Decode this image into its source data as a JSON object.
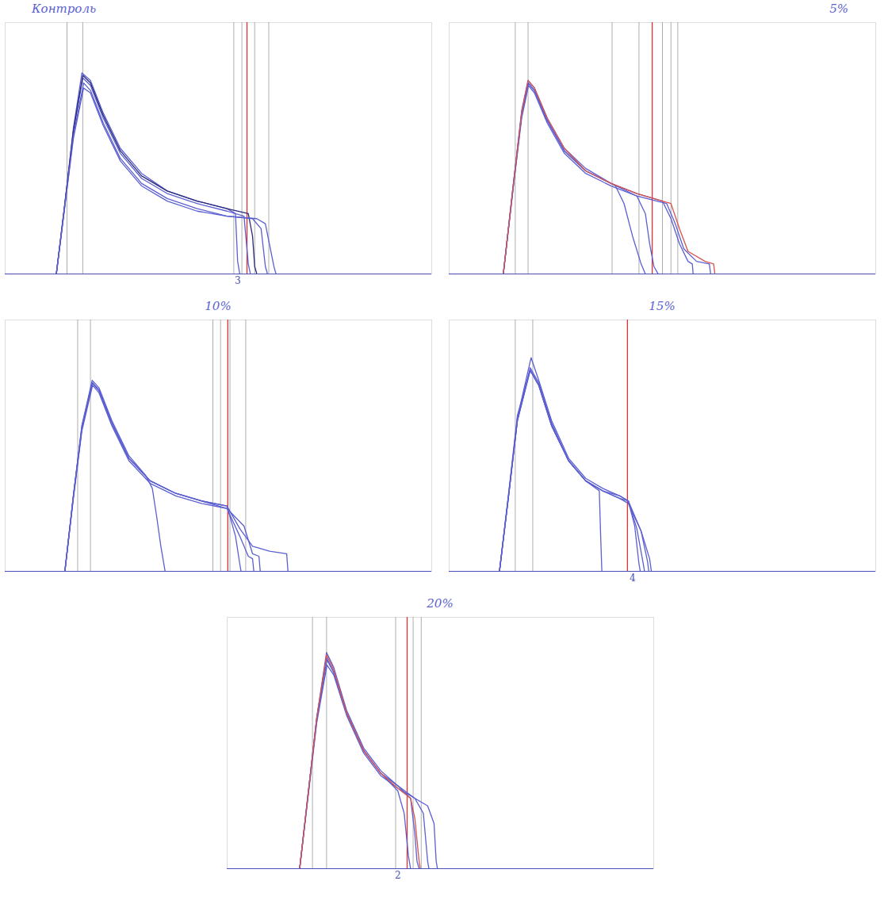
{
  "chart_data": [
    {
      "type": "line",
      "title": "Контроль",
      "xlim": [
        0,
        100
      ],
      "ylim": [
        0,
        100
      ],
      "xticks": [],
      "yticks": [],
      "grid": false,
      "tick_labels": false,
      "series": [
        {
          "color": "#5b5fd1",
          "x": [
            12,
            14,
            16,
            18,
            20,
            23,
            27,
            32,
            38,
            45,
            52,
            54,
            54.5,
            55
          ],
          "values": [
            0,
            28,
            58,
            80,
            77,
            64,
            50,
            40,
            33,
            29,
            26,
            24,
            5,
            0
          ]
        },
        {
          "color": "#5b5fd1",
          "x": [
            12,
            14,
            16,
            18.2,
            20,
            23,
            27,
            32,
            38,
            45,
            52,
            56,
            57,
            57.5
          ],
          "values": [
            0,
            28,
            57,
            78,
            75,
            62,
            48,
            38,
            32,
            28,
            25,
            23,
            4,
            0
          ]
        },
        {
          "color": "#2a2a7a",
          "x": [
            12,
            14,
            16,
            18.2,
            20,
            23,
            27,
            32,
            38,
            45,
            52,
            57,
            58,
            58.5,
            59
          ],
          "values": [
            0,
            28,
            57,
            79,
            76,
            63,
            49,
            39,
            33,
            29,
            26,
            24,
            15,
            3,
            0
          ]
        },
        {
          "color": "#5b5fd1",
          "x": [
            12,
            14,
            16,
            18.4,
            20,
            23,
            27,
            32,
            38,
            45,
            52,
            58,
            60,
            61,
            61.5
          ],
          "values": [
            0,
            27,
            55,
            76,
            73,
            60,
            46,
            36,
            30,
            26,
            23,
            22,
            18,
            3,
            0
          ]
        },
        {
          "color": "#5b5fd1",
          "x": [
            12,
            14,
            16,
            18.4,
            20,
            23,
            27,
            32,
            38,
            45,
            52,
            59,
            61,
            63,
            63.5
          ],
          "values": [
            0,
            27,
            54,
            74,
            72,
            59,
            45,
            35,
            29,
            25,
            23,
            22,
            20,
            3,
            0
          ]
        }
      ],
      "vlines": [
        14.5,
        18.2,
        53.6,
        55.5,
        58.5,
        61.8
      ],
      "red_line": 56.7,
      "annotations": [
        {
          "x": 54.5,
          "text": "3"
        }
      ]
    },
    {
      "type": "line",
      "title": "5%",
      "xlim": [
        0,
        100
      ],
      "ylim": [
        0,
        100
      ],
      "xticks": [],
      "yticks": [],
      "grid": false,
      "tick_labels": false,
      "series": [
        {
          "color": "#5b5fd1",
          "x": [
            12.7,
            15,
            17,
            18.5,
            20,
            23,
            27,
            32,
            37,
            39,
            41,
            43,
            45,
            46
          ],
          "values": [
            0,
            35,
            65,
            77,
            74,
            62,
            50,
            42,
            37,
            35,
            28,
            15,
            4,
            0
          ]
        },
        {
          "color": "#5b5fd1",
          "x": [
            12.7,
            15,
            17,
            18.5,
            20,
            23,
            27,
            32,
            38,
            44,
            46,
            47,
            48,
            49
          ],
          "values": [
            0,
            35,
            64,
            76,
            73,
            61,
            49,
            41,
            36,
            31,
            24,
            12,
            3,
            0
          ]
        },
        {
          "color": "#5b5fd1",
          "x": [
            12.7,
            15,
            17,
            18.6,
            20,
            23,
            27,
            32,
            38,
            44,
            50,
            52,
            54,
            56,
            57,
            57.2
          ],
          "values": [
            0,
            34,
            63,
            76,
            73,
            61,
            49,
            41,
            36,
            32,
            29,
            22,
            12,
            5,
            4,
            0
          ]
        },
        {
          "color": "#5b5fd1",
          "x": [
            12.7,
            15,
            17,
            18.6,
            20,
            23,
            27,
            32,
            38,
            44,
            51,
            53,
            55,
            58,
            61,
            61.3
          ],
          "values": [
            0,
            34,
            62,
            75,
            72,
            60,
            48,
            40,
            35,
            31,
            28,
            20,
            10,
            5,
            4,
            0
          ]
        },
        {
          "color": "#d9534f",
          "x": [
            12.7,
            15,
            17,
            18.5,
            20,
            23,
            27,
            32,
            38,
            44,
            52,
            54,
            56,
            60,
            62,
            62.3
          ],
          "values": [
            0,
            35,
            64,
            77,
            74,
            62,
            50,
            41,
            36,
            32,
            28,
            18,
            9,
            5,
            4,
            0
          ]
        }
      ],
      "vlines": [
        15.5,
        18.5,
        38.2,
        44.5,
        50,
        52,
        53.6
      ],
      "red_line": 47.6,
      "annotations": []
    },
    {
      "type": "line",
      "title": "10%",
      "xlim": [
        0,
        100
      ],
      "ylim": [
        0,
        100
      ],
      "xticks": [],
      "yticks": [],
      "grid": false,
      "tick_labels": false,
      "series": [
        {
          "color": "#5b5fd1",
          "x": [
            14,
            16,
            18,
            20.4,
            22,
            25,
            29,
            33,
            34.5,
            35.5,
            36.5,
            37.5
          ],
          "values": [
            0,
            30,
            58,
            76,
            73,
            60,
            46,
            38,
            33,
            22,
            10,
            0
          ]
        },
        {
          "color": "#5b5fd1",
          "x": [
            14,
            16,
            18,
            20.4,
            22,
            25,
            29,
            34,
            40,
            46,
            52,
            54,
            55,
            55.3
          ],
          "values": [
            0,
            30,
            58,
            75,
            72,
            59,
            45,
            36,
            31,
            28,
            26,
            14,
            3,
            0
          ]
        },
        {
          "color": "#5b5fd1",
          "x": [
            14,
            16,
            18,
            20.5,
            22,
            25,
            29,
            34,
            40,
            46,
            52,
            55,
            57,
            58,
            58.3
          ],
          "values": [
            0,
            30,
            57,
            75,
            72,
            59,
            45,
            36,
            31,
            28,
            25,
            14,
            6,
            5,
            0
          ]
        },
        {
          "color": "#5b5fd1",
          "x": [
            14,
            16,
            18,
            20.5,
            22,
            25,
            29,
            34,
            40,
            46,
            52,
            56,
            58,
            59.5,
            59.8
          ],
          "values": [
            0,
            29,
            56,
            74,
            71,
            58,
            44,
            35,
            30,
            27,
            25,
            18,
            7,
            6,
            0
          ]
        },
        {
          "color": "#5b5fd1",
          "x": [
            14,
            16,
            18,
            20.4,
            22,
            25,
            29,
            34,
            40,
            46,
            52,
            55,
            58,
            62,
            66,
            66.3
          ],
          "values": [
            0,
            30,
            57,
            75,
            72,
            59,
            45,
            36,
            31,
            28,
            26,
            17,
            10,
            8,
            7,
            0
          ]
        }
      ],
      "vlines": [
        17,
        20,
        48.7,
        50.5,
        52.7,
        56.4
      ],
      "red_line": 52.2,
      "annotations": []
    },
    {
      "type": "line",
      "title": "15%",
      "xlim": [
        0,
        100
      ],
      "ylim": [
        0,
        100
      ],
      "xticks": [],
      "yticks": [],
      "grid": false,
      "tick_labels": false,
      "series": [
        {
          "color": "#5b5fd1",
          "x": [
            11.8,
            14,
            16,
            19,
            21,
            24,
            28,
            32,
            35.2,
            35.5,
            35.8
          ],
          "values": [
            0,
            32,
            62,
            80,
            74,
            58,
            44,
            36,
            32,
            15,
            0
          ]
        },
        {
          "color": "#5b5fd1",
          "x": [
            11.8,
            14,
            16,
            19.2,
            21,
            24,
            28,
            32,
            36,
            40,
            42,
            43.5,
            44.5,
            44.8
          ],
          "values": [
            0,
            31,
            61,
            85,
            76,
            60,
            45,
            37,
            33,
            30,
            28,
            18,
            3,
            0
          ]
        },
        {
          "color": "#5b5fd1",
          "x": [
            11.8,
            14,
            16,
            19,
            21,
            24,
            28,
            32,
            36,
            40,
            42,
            44,
            45.5,
            45.8
          ],
          "values": [
            0,
            31,
            60,
            81,
            75,
            59,
            44,
            36,
            32,
            30,
            28,
            17,
            3,
            0
          ]
        },
        {
          "color": "#5b5fd1",
          "x": [
            11.8,
            14,
            16,
            19,
            21,
            24,
            28,
            32,
            36,
            40,
            42,
            45,
            46.5,
            46.8
          ],
          "values": [
            0,
            31,
            60,
            80,
            74,
            58,
            44,
            36,
            32,
            29,
            28,
            16,
            4,
            0
          ]
        },
        {
          "color": "#5b5fd1",
          "x": [
            11.8,
            14,
            16,
            19,
            21,
            24,
            28,
            32,
            36,
            40,
            42,
            45,
            47,
            47.4
          ],
          "values": [
            0,
            31,
            60,
            80,
            74,
            58,
            44,
            36,
            32,
            29,
            27,
            16,
            5,
            0
          ]
        }
      ],
      "vlines": [
        15.5,
        19.6
      ],
      "red_line": 41.8,
      "annotations": [
        {
          "x": 43,
          "text": "4"
        }
      ]
    },
    {
      "type": "line",
      "title": "20%",
      "xlim": [
        0,
        100
      ],
      "ylim": [
        0,
        100
      ],
      "xticks": [],
      "yticks": [],
      "grid": false,
      "tick_labels": false,
      "series": [
        {
          "color": "#5b5fd1",
          "x": [
            17,
            19,
            21,
            23.3,
            25,
            28,
            32,
            36,
            40,
            41.5,
            42.5,
            43
          ],
          "values": [
            0,
            30,
            60,
            84,
            78,
            62,
            47,
            38,
            31,
            22,
            5,
            0
          ]
        },
        {
          "color": "#5b5fd1",
          "x": [
            17,
            19,
            21,
            23.3,
            25,
            28,
            32,
            36,
            40,
            43,
            44,
            44.5,
            45
          ],
          "values": [
            0,
            30,
            60,
            86,
            80,
            63,
            48,
            39,
            33,
            28,
            14,
            3,
            0
          ]
        },
        {
          "color": "#5b5fd1",
          "x": [
            17,
            19,
            21,
            23.4,
            25,
            28,
            32,
            36,
            40,
            44,
            46,
            47,
            47.3
          ],
          "values": [
            0,
            30,
            59,
            83,
            78,
            62,
            47,
            38,
            33,
            28,
            22,
            3,
            0
          ]
        },
        {
          "color": "#5b5fd1",
          "x": [
            17,
            19,
            21,
            23.4,
            25,
            28,
            32,
            36,
            40,
            44,
            47,
            48.5,
            49,
            49.3
          ],
          "values": [
            0,
            29,
            58,
            81,
            77,
            61,
            46,
            37,
            32,
            28,
            25,
            18,
            3,
            0
          ]
        },
        {
          "color": "#d9534f",
          "x": [
            17,
            19,
            21,
            23.3,
            25,
            28,
            32,
            36,
            40,
            43,
            44,
            45,
            45.3
          ],
          "values": [
            0,
            30,
            60,
            85,
            79,
            62,
            47,
            38,
            32,
            28,
            20,
            3,
            0
          ]
        }
      ],
      "vlines": [
        20,
        23.3,
        39.5,
        43.6,
        45.5
      ],
      "red_line": 42.2,
      "annotations": [
        {
          "x": 40,
          "text": "2"
        }
      ]
    }
  ]
}
